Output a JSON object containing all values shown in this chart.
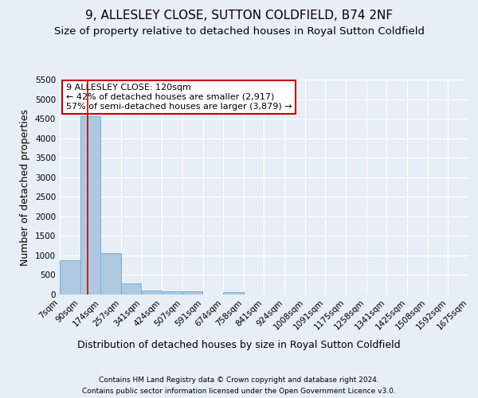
{
  "title1": "9, ALLESLEY CLOSE, SUTTON COLDFIELD, B74 2NF",
  "title2": "Size of property relative to detached houses in Royal Sutton Coldfield",
  "xlabel": "Distribution of detached houses by size in Royal Sutton Coldfield",
  "ylabel": "Number of detached properties",
  "footer1": "Contains HM Land Registry data © Crown copyright and database right 2024.",
  "footer2": "Contains public sector information licensed under the Open Government Licence v3.0.",
  "bins": [
    7,
    90,
    174,
    257,
    341,
    424,
    507,
    591,
    674,
    758,
    841,
    924,
    1008,
    1091,
    1175,
    1258,
    1341,
    1425,
    1508,
    1592,
    1675
  ],
  "counts": [
    880,
    4560,
    1060,
    290,
    100,
    80,
    80,
    0,
    60,
    0,
    0,
    0,
    0,
    0,
    0,
    0,
    0,
    0,
    0,
    0
  ],
  "bar_color": "#adc8e0",
  "bar_edgecolor": "#7aafd4",
  "property_size": 120,
  "vline_color": "#cc0000",
  "annotation_text": "9 ALLESLEY CLOSE: 120sqm\n← 42% of detached houses are smaller (2,917)\n57% of semi-detached houses are larger (3,879) →",
  "annotation_box_color": "#cc0000",
  "ylim": [
    0,
    5500
  ],
  "yticks": [
    0,
    500,
    1000,
    1500,
    2000,
    2500,
    3000,
    3500,
    4000,
    4500,
    5000,
    5500
  ],
  "bg_color": "#e8eef5",
  "plot_bg_color": "#e8eef5",
  "grid_color": "#ffffff",
  "title1_fontsize": 11,
  "title2_fontsize": 9.5,
  "tick_fontsize": 7.5,
  "ylabel_fontsize": 9,
  "xlabel_fontsize": 9,
  "footer_fontsize": 6.5,
  "annot_fontsize": 8
}
